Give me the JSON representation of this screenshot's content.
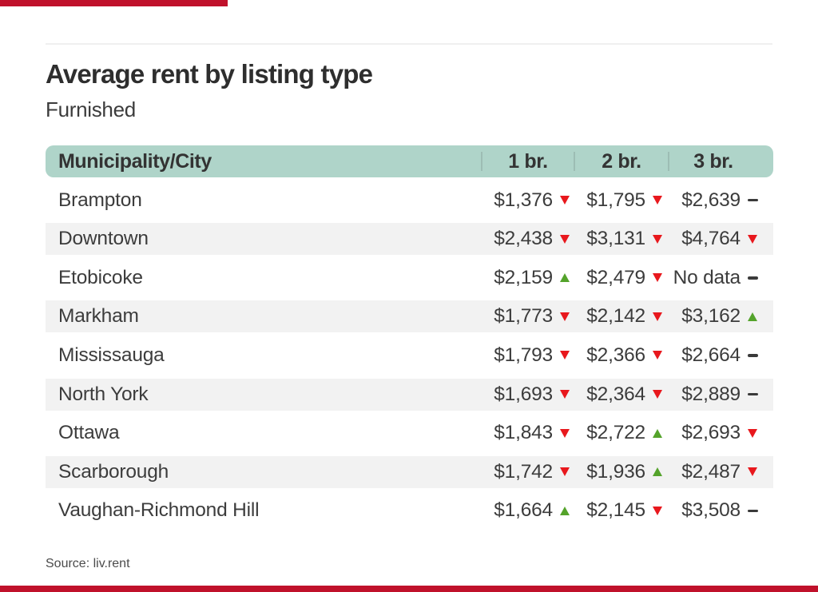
{
  "chart_data": {
    "type": "table",
    "title": "Average rent by listing type",
    "subtitle": "Furnished",
    "source": "Source: liv.rent",
    "header": {
      "city": "Municipality/City",
      "cols": [
        "1 br.",
        "2 br.",
        "3 br."
      ]
    },
    "rows": [
      {
        "city": "Brampton",
        "values": [
          "$1,376",
          "$1,795",
          "$2,639"
        ],
        "trends": [
          "down",
          "down",
          "flat"
        ]
      },
      {
        "city": "Downtown",
        "values": [
          "$2,438",
          "$3,131",
          "$4,764"
        ],
        "trends": [
          "down",
          "down",
          "down"
        ]
      },
      {
        "city": "Etobicoke",
        "values": [
          "$2,159",
          "$2,479",
          "No data"
        ],
        "trends": [
          "up",
          "down",
          "flat"
        ]
      },
      {
        "city": "Markham",
        "values": [
          "$1,773",
          "$2,142",
          "$3,162"
        ],
        "trends": [
          "down",
          "down",
          "up"
        ]
      },
      {
        "city": "Mississauga",
        "values": [
          "$1,793",
          "$2,366",
          "$2,664"
        ],
        "trends": [
          "down",
          "down",
          "flat"
        ]
      },
      {
        "city": "North York",
        "values": [
          "$1,693",
          "$2,364",
          "$2,889"
        ],
        "trends": [
          "down",
          "down",
          "flat"
        ]
      },
      {
        "city": "Ottawa",
        "values": [
          "$1,843",
          "$2,722",
          "$2,693"
        ],
        "trends": [
          "down",
          "up",
          "down"
        ]
      },
      {
        "city": "Scarborough",
        "values": [
          "$1,742",
          "$1,936",
          "$2,487"
        ],
        "trends": [
          "down",
          "up",
          "down"
        ]
      },
      {
        "city": "Vaughan-Richmond Hill",
        "values": [
          "$1,664",
          "$2,145",
          "$3,508"
        ],
        "trends": [
          "up",
          "down",
          "flat"
        ]
      }
    ],
    "trend_glyphs": {
      "down": "▼",
      "up": "▲",
      "flat": "–"
    },
    "numeric_values": {
      "note": "rows as numbers, null = No data",
      "br1": [
        1376,
        2438,
        2159,
        1773,
        1793,
        1693,
        1843,
        1742,
        1664
      ],
      "br2": [
        1795,
        3131,
        2479,
        2142,
        2366,
        2364,
        2722,
        1936,
        2145
      ],
      "br3": [
        2639,
        4764,
        null,
        3162,
        2664,
        2889,
        2693,
        2487,
        3508
      ]
    }
  },
  "colors": {
    "brand_bar": "#c0112b",
    "header_bg": "#afd4c9",
    "header_divider": "#9dbdb4",
    "row_alt_bg": "#f2f2f2",
    "trend_up": "#54a32b",
    "trend_down": "#e8181d",
    "trend_flat": "#3a3a3a",
    "title_text": "#2e2e2e",
    "body_text": "#3c3c3c"
  }
}
